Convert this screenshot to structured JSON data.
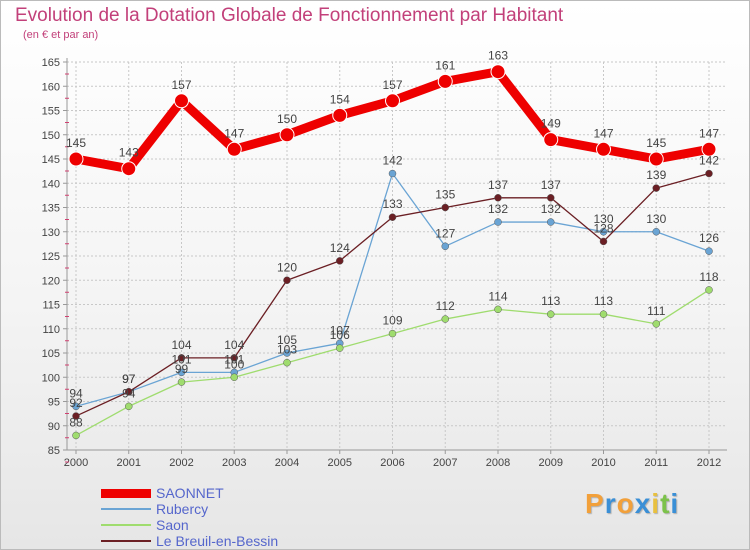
{
  "chart_data": {
    "type": "line",
    "title": "Evolution de la Dotation Globale de Fonctionnement par Habitant",
    "subtitle": "(en € et par an)",
    "xlabel": "",
    "ylabel": "",
    "ylim": [
      85,
      165
    ],
    "yticks": [
      85,
      90,
      95,
      100,
      105,
      110,
      115,
      120,
      125,
      130,
      135,
      140,
      145,
      150,
      155,
      160,
      165
    ],
    "grid": true,
    "legend_position": "bottom-left",
    "categories": [
      "2000",
      "2001",
      "2002",
      "2003",
      "2004",
      "2005",
      "2006",
      "2007",
      "2008",
      "2009",
      "2010",
      "2011",
      "2012"
    ],
    "series": [
      {
        "name": "SAONNET",
        "color": "#ee0000",
        "emphasis": true,
        "values": [
          145,
          143,
          157,
          147,
          150,
          154,
          157,
          161,
          163,
          149,
          147,
          145,
          147
        ]
      },
      {
        "name": "Rubercy",
        "color": "#6aa4d4",
        "emphasis": false,
        "values": [
          94,
          97,
          101,
          101,
          105,
          107,
          142,
          127,
          132,
          132,
          130,
          130,
          126
        ]
      },
      {
        "name": "Saon",
        "color": "#9fdc6e",
        "emphasis": false,
        "values": [
          88,
          94,
          99,
          100,
          103,
          106,
          109,
          112,
          114,
          113,
          113,
          111,
          118
        ]
      },
      {
        "name": "Le Breuil-en-Bessin",
        "color": "#6b1f24",
        "emphasis": false,
        "values": [
          92,
          97,
          104,
          104,
          120,
          124,
          133,
          135,
          137,
          137,
          128,
          139,
          142
        ]
      }
    ]
  },
  "logo": {
    "letters": [
      "P",
      "r",
      "o",
      "x",
      "i",
      "t",
      "i"
    ],
    "colors": [
      "#f2a03a",
      "#3a8fd6",
      "#f2a03a",
      "#3a8fd6",
      "#e8c040",
      "#7cc24a",
      "#3a8fd6"
    ]
  }
}
